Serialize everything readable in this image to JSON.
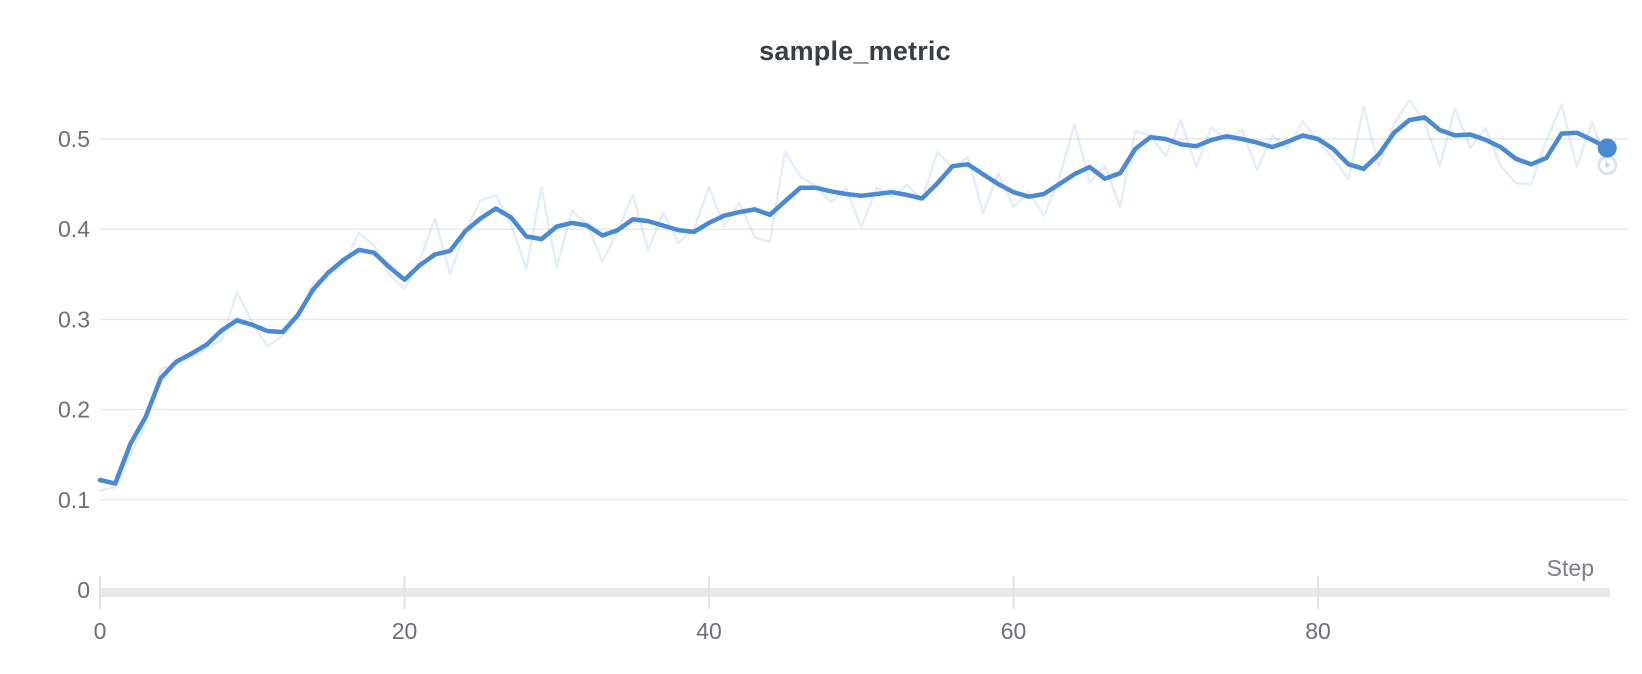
{
  "chart": {
    "title": "sample_metric",
    "xlabel": "Step"
  },
  "colors": {
    "series_blue": "#4a89d4",
    "title_text": "#3a3e45",
    "tick_text": "#6e6e78",
    "axis_label_text": "#7e7e88",
    "gridline": "#e9e9ec",
    "axis_bar": "#e8e8eb",
    "tick_mark": "#e2e2e6",
    "background": "#ffffff"
  },
  "chart_data": {
    "type": "line",
    "title": "sample_metric",
    "xlabel": "Step",
    "ylabel": "",
    "x": {
      "start": 0,
      "step": 1,
      "count": 100
    },
    "xlim": [
      0,
      99
    ],
    "ylim": [
      0,
      0.56
    ],
    "grid": true,
    "legend": "none",
    "xticks": {
      "values": [
        0,
        20,
        40,
        60,
        80
      ],
      "labels": [
        "0",
        "20",
        "40",
        "60",
        "80"
      ]
    },
    "yticks": {
      "values": [
        0,
        0.1,
        0.2,
        0.3,
        0.4,
        0.5
      ],
      "labels": [
        "0",
        "0.1",
        "0.2",
        "0.3",
        "0.4",
        "0.5"
      ]
    },
    "series": [
      {
        "name": "raw",
        "color": "#4a89d4",
        "opacity": 0.15,
        "width": 2.5,
        "endpoint": "ring",
        "values": [
          0.11,
          0.114,
          0.15,
          0.185,
          0.245,
          0.25,
          0.258,
          0.268,
          0.277,
          0.33,
          0.297,
          0.27,
          0.282,
          0.302,
          0.34,
          0.35,
          0.36,
          0.396,
          0.382,
          0.35,
          0.334,
          0.365,
          0.412,
          0.35,
          0.398,
          0.432,
          0.438,
          0.405,
          0.356,
          0.447,
          0.358,
          0.421,
          0.405,
          0.364,
          0.398,
          0.438,
          0.377,
          0.418,
          0.385,
          0.399,
          0.447,
          0.403,
          0.43,
          0.391,
          0.386,
          0.486,
          0.458,
          0.448,
          0.43,
          0.446,
          0.402,
          0.446,
          0.436,
          0.449,
          0.433,
          0.486,
          0.468,
          0.48,
          0.418,
          0.462,
          0.425,
          0.441,
          0.415,
          0.456,
          0.517,
          0.452,
          0.47,
          0.425,
          0.509,
          0.504,
          0.481,
          0.521,
          0.469,
          0.513,
          0.499,
          0.51,
          0.466,
          0.504,
          0.489,
          0.52,
          0.497,
          0.479,
          0.455,
          0.536,
          0.47,
          0.517,
          0.543,
          0.519,
          0.47,
          0.534,
          0.49,
          0.512,
          0.47,
          0.451,
          0.45,
          0.499,
          0.538,
          0.469,
          0.519,
          0.471
        ]
      },
      {
        "name": "smoothed",
        "color": "#4a89d4",
        "opacity": 1,
        "width": 4.5,
        "endpoint": "dot",
        "values": [
          0.122,
          0.118,
          0.162,
          0.192,
          0.235,
          0.253,
          0.262,
          0.272,
          0.288,
          0.299,
          0.294,
          0.287,
          0.286,
          0.305,
          0.333,
          0.352,
          0.366,
          0.377,
          0.374,
          0.358,
          0.344,
          0.36,
          0.372,
          0.376,
          0.398,
          0.412,
          0.423,
          0.413,
          0.392,
          0.389,
          0.403,
          0.407,
          0.404,
          0.393,
          0.399,
          0.411,
          0.409,
          0.404,
          0.399,
          0.397,
          0.407,
          0.415,
          0.419,
          0.422,
          0.416,
          0.431,
          0.446,
          0.446,
          0.442,
          0.439,
          0.437,
          0.439,
          0.441,
          0.438,
          0.434,
          0.451,
          0.47,
          0.472,
          0.461,
          0.45,
          0.441,
          0.436,
          0.439,
          0.45,
          0.461,
          0.469,
          0.456,
          0.462,
          0.489,
          0.502,
          0.5,
          0.494,
          0.492,
          0.499,
          0.503,
          0.5,
          0.496,
          0.491,
          0.497,
          0.504,
          0.5,
          0.489,
          0.472,
          0.467,
          0.483,
          0.507,
          0.521,
          0.524,
          0.51,
          0.504,
          0.505,
          0.499,
          0.491,
          0.478,
          0.472,
          0.479,
          0.506,
          0.507,
          0.499,
          0.49
        ]
      }
    ]
  }
}
